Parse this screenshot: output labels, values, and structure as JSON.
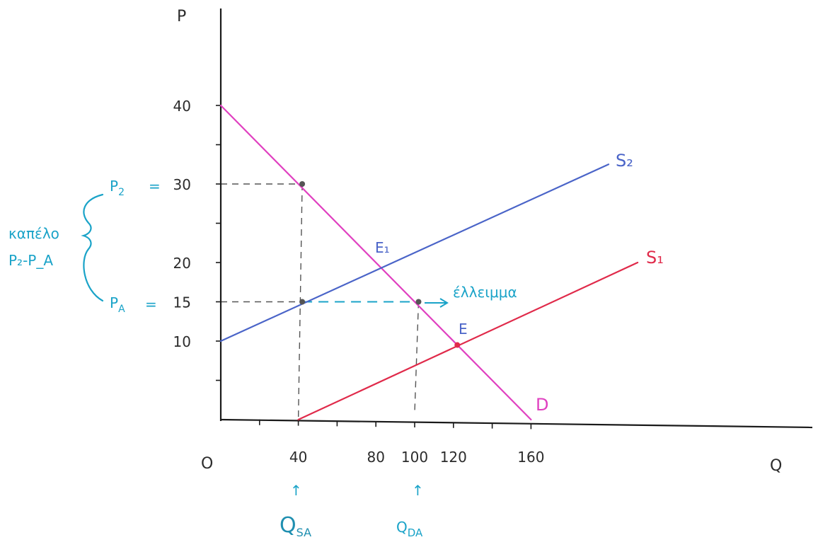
{
  "chart_data": {
    "type": "line",
    "title": "",
    "xlabel": "Q",
    "ylabel": "P",
    "origin_label": "O",
    "xlim": [
      0,
      200
    ],
    "ylim": [
      0,
      40
    ],
    "x_ticks": [
      {
        "value": 40,
        "label": "40"
      },
      {
        "value": 80,
        "label": "80"
      },
      {
        "value": 100,
        "label": "100"
      },
      {
        "value": 120,
        "label": "120"
      },
      {
        "value": 160,
        "label": "160"
      }
    ],
    "y_ticks": [
      {
        "value": 10,
        "label": "10"
      },
      {
        "value": 15,
        "label": "15"
      },
      {
        "value": 20,
        "label": "20"
      },
      {
        "value": 30,
        "label": "30"
      },
      {
        "value": 40,
        "label": "40"
      }
    ],
    "series": [
      {
        "name": "D",
        "color": "#e040c0",
        "points": [
          [
            0,
            40
          ],
          [
            160,
            0
          ]
        ]
      },
      {
        "name": "S₂",
        "color": "#4a64c8",
        "points": [
          [
            0,
            10
          ],
          [
            200,
            32.5
          ]
        ]
      },
      {
        "name": "S₁",
        "color": "#e02a4a",
        "points": [
          [
            40,
            0
          ],
          [
            215,
            20
          ]
        ]
      }
    ],
    "points": [
      {
        "name": "E₁",
        "x": 81,
        "y": 19.5,
        "color": "#4a64c8",
        "label": "E₁",
        "marker": false
      },
      {
        "name": "E",
        "x": 122,
        "y": 9.5,
        "color": "#e02a4a",
        "label": "E",
        "marker": true
      },
      {
        "name": "top-point",
        "x": 42,
        "y": 30,
        "color": "#555555",
        "label": "",
        "marker": true
      },
      {
        "name": "qsa-point",
        "x": 42,
        "y": 15,
        "color": "#555555",
        "label": "",
        "marker": true
      },
      {
        "name": "qda-point",
        "x": 102,
        "y": 15,
        "color": "#555555",
        "label": "",
        "marker": true
      }
    ],
    "price_labels": {
      "p2": {
        "symbol": "P",
        "sub": "2",
        "equals": "=",
        "value": "30"
      },
      "pa": {
        "symbol": "P",
        "sub": "A",
        "equals": "=",
        "value": "15"
      }
    },
    "brace_text": [
      "καπέλο",
      "P₂-P_A"
    ],
    "deficit_label": "έλλειμμα",
    "q_labels": {
      "qsa": {
        "main": "Q",
        "sub": "SA",
        "arrow": "↑"
      },
      "qda": {
        "main": "Q",
        "sub": "DA",
        "arrow": "↑"
      }
    },
    "colors": {
      "axis": "#1a1a1a",
      "demand": "#e040c0",
      "supply2": "#4a64c8",
      "supply1": "#e02a4a",
      "annotation": "#1aa3c8",
      "guide": "#555555"
    }
  }
}
